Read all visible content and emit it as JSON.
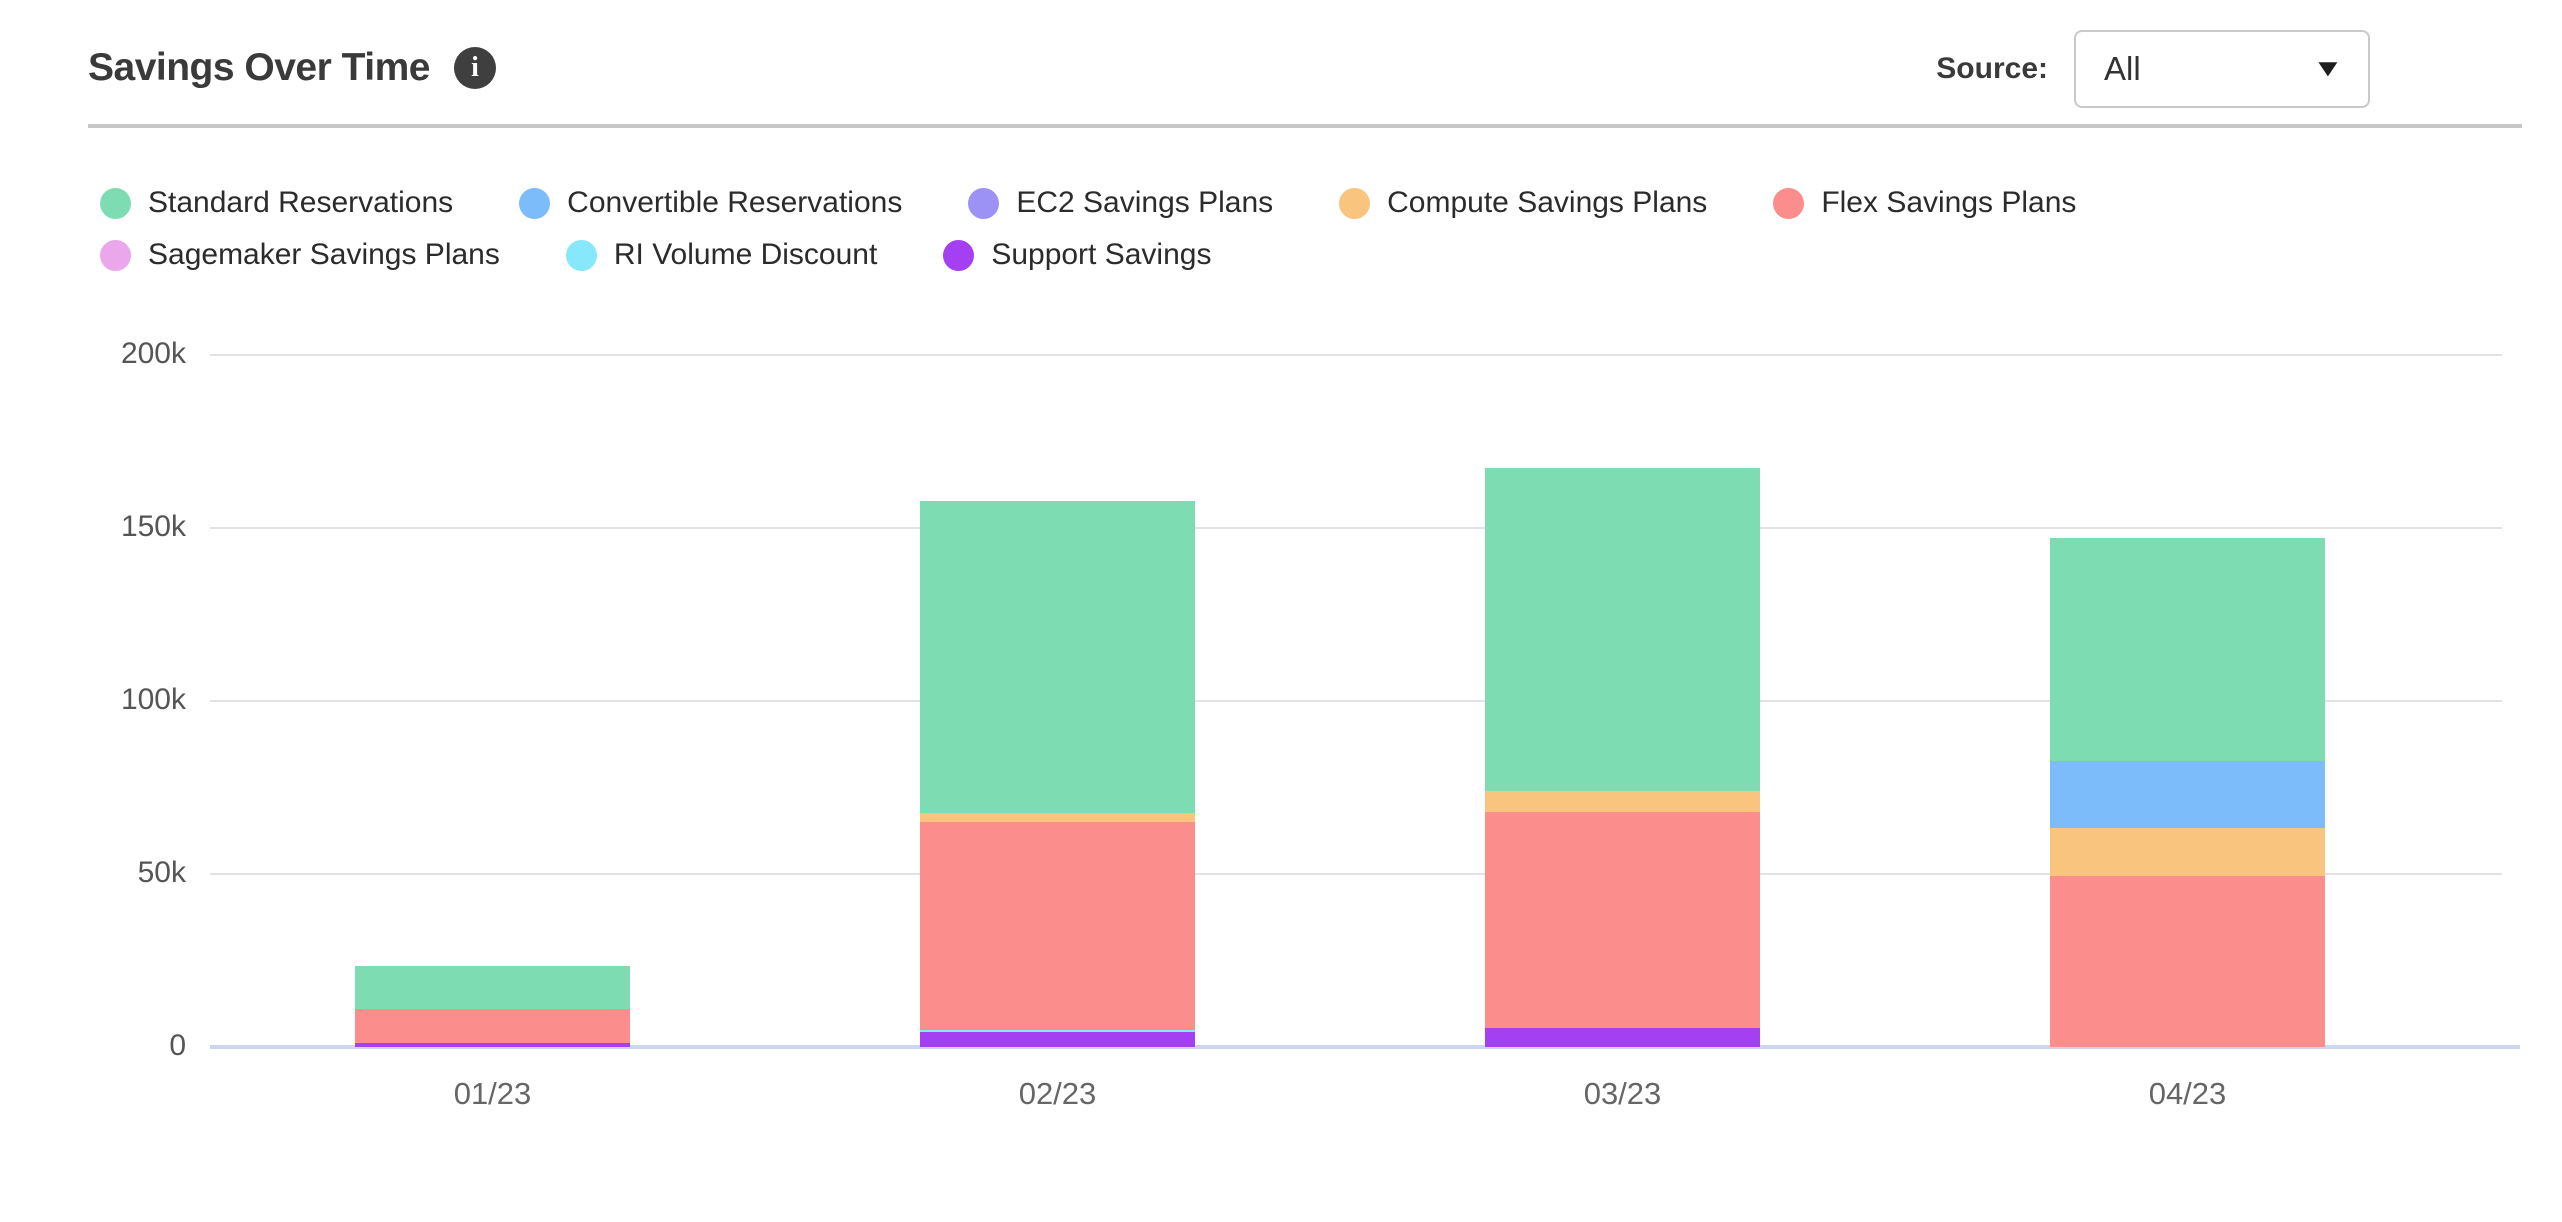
{
  "header": {
    "title": "Savings Over Time",
    "source_label": "Source:",
    "source_value": "All"
  },
  "icons": {
    "info": "i",
    "caret_down": "▼"
  },
  "colors": {
    "title_text": "#3a3a3a",
    "info_badge_bg": "#3f3f3f",
    "dropdown_border": "#c9c9c9",
    "header_divider": "#c6c6c6",
    "gridline": "#e3e3e3",
    "axis_baseline": "#ccd5f2",
    "y_tick_label": "#555555",
    "x_tick_label": "#666666",
    "legend_text": "#2b2b2b"
  },
  "chart_data": {
    "type": "bar",
    "stacked": true,
    "title": "Savings Over Time",
    "categories": [
      "01/23",
      "02/23",
      "03/23",
      "04/23"
    ],
    "values_unit": "thousands (k)",
    "ylim": [
      0,
      200
    ],
    "y_ticks": [
      "200k",
      "150k",
      "100k",
      "50k",
      "0"
    ],
    "y_tick_values": [
      200,
      150,
      100,
      50,
      0
    ],
    "grid": "horizontal",
    "legend_position": "top",
    "series": [
      {
        "name": "Standard Reservations",
        "color": "#7edcb3",
        "values": [
          12.3,
          90.3,
          93.4,
          64.5
        ]
      },
      {
        "name": "Convertible Reservations",
        "color": "#7dbcfa",
        "values": [
          0,
          0,
          0,
          19.4
        ]
      },
      {
        "name": "EC2 Savings Plans",
        "color": "#9c92f5",
        "values": [
          0,
          0,
          0,
          0
        ]
      },
      {
        "name": "Compute Savings Plans",
        "color": "#f9c57e",
        "values": [
          0,
          2.4,
          6.1,
          13.9
        ]
      },
      {
        "name": "Flex Savings Plans",
        "color": "#fc8d8d",
        "values": [
          10.0,
          60.2,
          62.4,
          49.4
        ]
      },
      {
        "name": "Sagemaker Savings Plans",
        "color": "#eba7ec",
        "values": [
          0,
          0,
          0,
          0
        ]
      },
      {
        "name": "RI Volume Discount",
        "color": "#86e8fa",
        "values": [
          0,
          0.6,
          0,
          0
        ]
      },
      {
        "name": "Support Savings",
        "color": "#a440f2",
        "values": [
          1.1,
          4.3,
          5.4,
          0
        ]
      }
    ],
    "totals": [
      23.4,
      157.8,
      167.3,
      147.2
    ],
    "stack_order_bottom_to_top": [
      "Support Savings",
      "RI Volume Discount",
      "Sagemaker Savings Plans",
      "Flex Savings Plans",
      "Compute Savings Plans",
      "EC2 Savings Plans",
      "Convertible Reservations",
      "Standard Reservations"
    ]
  }
}
